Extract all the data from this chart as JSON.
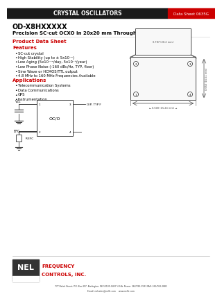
{
  "header_text": "CRYSTAL OSCILLATORS",
  "datasheet_num": "Data Sheet 0635G",
  "title_line1": "OD-X8HXXXXX",
  "title_line2": "Precision SC-cut OCXO in 20x20 mm Through Hole Package",
  "product_data_sheet": "Product Data Sheet",
  "features_title": "Features",
  "features": [
    "SC-cut crystal",
    "High Stability (up to ± 5x10⁻⁹)",
    "Low Aging (5x10⁻¹⁰/day, 5x10⁻⁸/year)",
    "Low Phase Noise (-160 dBc/Hz, TYP, floor)",
    "Sine Wave or HCMOS/TTL output",
    "4.8 MHz to 160 MHz Frequencies Available"
  ],
  "applications_title": "Applications",
  "applications": [
    "Telecommunication Systems",
    "Data Communications",
    "GPS",
    "Instrumentation"
  ],
  "nel_text": "NEL",
  "freq_text": "FREQUENCY",
  "controls_text": "CONTROLS, INC.",
  "footer_address": "777 Beloit Street, P.O. Box 457, Burlington, WI 53105-0457 U.S.A. Phone: 262/763-3591 FAX: 262/763-2881",
  "footer_email": "Email: nelsales@nelfc.com    www.nelfc.com",
  "bg_color": "#ffffff",
  "header_bg": "#1a1a1a",
  "header_fg": "#ffffff",
  "datasheet_bg": "#cc0000",
  "datasheet_fg": "#ffffff",
  "title_color": "#000000",
  "body_color": "#000000",
  "nel_red": "#cc0000",
  "dim_color": "#444444"
}
